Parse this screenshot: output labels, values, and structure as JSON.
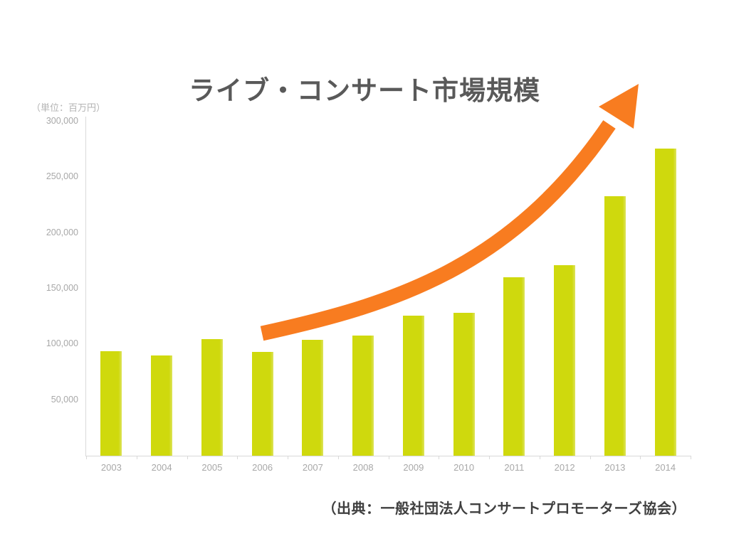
{
  "title": "ライブ・コンサート市場規模",
  "unit_label": "（単位：百万円）",
  "source": "（出典：一般社団法人コンサートプロモーターズ協会）",
  "colors": {
    "title_text": "#595959",
    "unit_text": "#b3b3b3",
    "tick_text": "#a8a8a8",
    "axis_line": "#d9d9d9",
    "bar": "#cfd90d",
    "bar_edge": "#dde35e",
    "arrow": "#f87c20",
    "source_text": "#3f3f3f",
    "background": "#ffffff"
  },
  "chart_data": {
    "type": "bar",
    "title": "ライブ・コンサート市場規模",
    "xlabel": "",
    "ylabel": "百万円",
    "categories": [
      "2003",
      "2004",
      "2005",
      "2006",
      "2007",
      "2008",
      "2009",
      "2010",
      "2011",
      "2012",
      "2013",
      "2014"
    ],
    "values": [
      94000,
      90000,
      105000,
      93000,
      104000,
      108000,
      126000,
      128000,
      160000,
      171000,
      233000,
      276000
    ],
    "ylim": [
      0,
      300000
    ],
    "y_tick_interval": 50000,
    "y_tick_labels_top_to_bottom": [
      "300,000",
      "250,000",
      "200,000",
      "150,000",
      "100,000",
      "50,000"
    ],
    "grid": false,
    "legend": "none",
    "annotations": [
      {
        "type": "arrow",
        "description": "orange curved growth arrow sweeping upward from 2006 bars to top right",
        "color": "#f87c20"
      }
    ]
  }
}
